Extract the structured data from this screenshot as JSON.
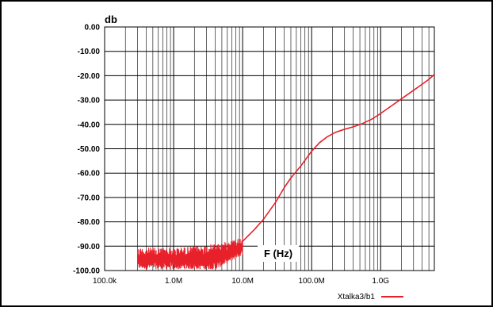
{
  "chart_data": {
    "type": "line",
    "ylabel": "db",
    "xlabel": "F (Hz)",
    "x_scale": "log",
    "xlim": [
      100000,
      6000000000
    ],
    "ylim": [
      -100,
      0
    ],
    "grid": true,
    "legend_position": "bottom-right",
    "x_major_ticks": [
      {
        "value": 100000,
        "label": "100.0k"
      },
      {
        "value": 1000000,
        "label": "1.0M"
      },
      {
        "value": 10000000,
        "label": "10.0M"
      },
      {
        "value": 100000000,
        "label": "100.0M"
      },
      {
        "value": 1000000000,
        "label": "1.0G"
      }
    ],
    "y_ticks": [
      {
        "value": 0,
        "label": "0.00"
      },
      {
        "value": -10,
        "label": "-10.00"
      },
      {
        "value": -20,
        "label": "-20.00"
      },
      {
        "value": -30,
        "label": "-30.00"
      },
      {
        "value": -40,
        "label": "-40.00"
      },
      {
        "value": -50,
        "label": "-50.00"
      },
      {
        "value": -60,
        "label": "-60.00"
      },
      {
        "value": -70,
        "label": "-70.00"
      },
      {
        "value": -80,
        "label": "-80.00"
      },
      {
        "value": -90,
        "label": "-90.00"
      },
      {
        "value": -100,
        "label": "-100.00"
      }
    ],
    "series": [
      {
        "name": "Xtalka3/b1",
        "color": "#e8202a",
        "smooth_points": [
          [
            10000000,
            -88
          ],
          [
            15000000,
            -83
          ],
          [
            20000000,
            -79
          ],
          [
            30000000,
            -72
          ],
          [
            40000000,
            -66
          ],
          [
            50000000,
            -62
          ],
          [
            70000000,
            -57
          ],
          [
            100000000,
            -51
          ],
          [
            130000000,
            -47.5
          ],
          [
            170000000,
            -45
          ],
          [
            220000000,
            -43.3
          ],
          [
            300000000,
            -42
          ],
          [
            400000000,
            -41
          ],
          [
            550000000,
            -39.6
          ],
          [
            750000000,
            -37.8
          ],
          [
            1000000000,
            -35.5
          ],
          [
            1500000000,
            -32
          ],
          [
            2000000000,
            -29.5
          ],
          [
            3000000000,
            -26
          ],
          [
            4000000000,
            -23.5
          ],
          [
            5000000000,
            -21.5
          ],
          [
            6000000000,
            -19.5
          ]
        ],
        "noise_region": {
          "x_start": 300000,
          "x_end": 10000000,
          "floor": -99.5,
          "envelope": [
            [
              300000,
              -90.5
            ],
            [
              1000000,
              -90.5
            ],
            [
              2000000,
              -90
            ],
            [
              4000000,
              -89
            ],
            [
              6000000,
              -88
            ],
            [
              8000000,
              -87
            ],
            [
              10000000,
              -86
            ]
          ]
        }
      }
    ]
  }
}
